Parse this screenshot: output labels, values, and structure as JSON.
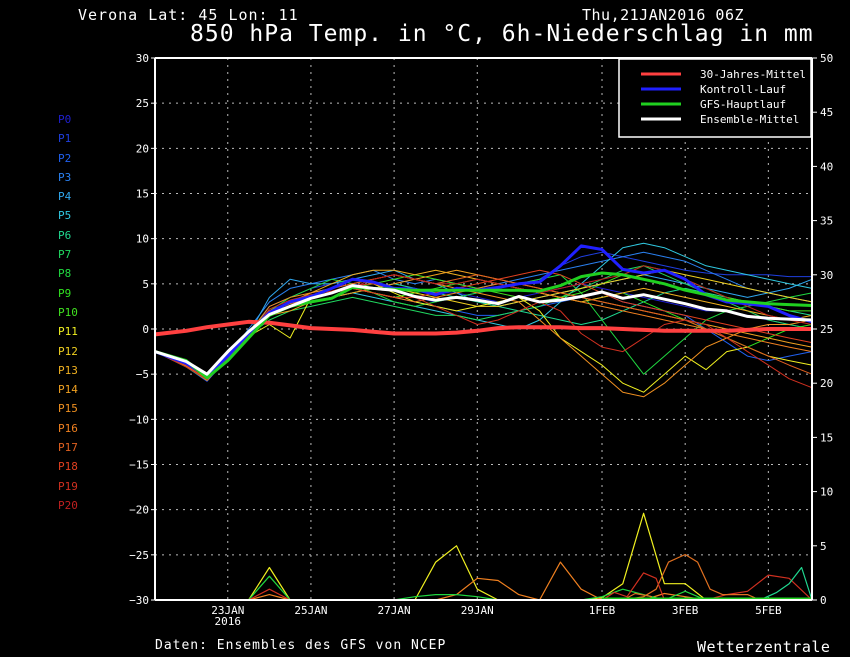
{
  "header": {
    "location": "Verona   Lat: 45 Lon: 11",
    "date": "Thu,21JAN2016 06Z",
    "title": "850 hPa Temp. in °C, 6h-Niederschlag in mm"
  },
  "footer": {
    "source": "Daten: Ensembles des GFS von NCEP",
    "brand": "Wetterzentrale"
  },
  "members": [
    {
      "label": "P0",
      "color": "#1f1fd0"
    },
    {
      "label": "P1",
      "color": "#1f3fe0"
    },
    {
      "label": "P2",
      "color": "#2060f0"
    },
    {
      "label": "P3",
      "color": "#2a80f0"
    },
    {
      "label": "P4",
      "color": "#30a8f0"
    },
    {
      "label": "P5",
      "color": "#30c8e0"
    },
    {
      "label": "P6",
      "color": "#20d890"
    },
    {
      "label": "P7",
      "color": "#20d860"
    },
    {
      "label": "P8",
      "color": "#20d840"
    },
    {
      "label": "P9",
      "color": "#30e020"
    },
    {
      "label": "P10",
      "color": "#40e020"
    },
    {
      "label": "P11",
      "color": "#f0f020"
    },
    {
      "label": "P12",
      "color": "#f0d020"
    },
    {
      "label": "P13",
      "color": "#f0b020"
    },
    {
      "label": "P14",
      "color": "#f0a020"
    },
    {
      "label": "P15",
      "color": "#f09020"
    },
    {
      "label": "P16",
      "color": "#f08020"
    },
    {
      "label": "P17",
      "color": "#e06020"
    },
    {
      "label": "P18",
      "color": "#e04020"
    },
    {
      "label": "P19",
      "color": "#d03020"
    },
    {
      "label": "P20",
      "color": "#c02020"
    }
  ],
  "chart_data": {
    "type": "line",
    "title": "850 hPa Temp. in °C, 6h-Niederschlag in mm",
    "x_unit": "day of January 2016 (32 = 1FEB)",
    "xlim": [
      21.25,
      37.05
    ],
    "ylim_left": [
      -30,
      30
    ],
    "ylim_right": [
      0,
      50
    ],
    "yticks_left": [
      "30",
      "25",
      "20",
      "15",
      "10",
      "5",
      "0",
      "-5",
      "-10",
      "-15",
      "-20",
      "-25",
      "-30"
    ],
    "yticks_right": [
      "50",
      "45",
      "40",
      "35",
      "30",
      "25",
      "20",
      "15",
      "10",
      "5",
      "0"
    ],
    "xticks": [
      {
        "x": 23,
        "label": "23JAN",
        "sub": "2016"
      },
      {
        "x": 25,
        "label": "25JAN",
        "sub": ""
      },
      {
        "x": 27,
        "label": "27JAN",
        "sub": ""
      },
      {
        "x": 29,
        "label": "29JAN",
        "sub": ""
      },
      {
        "x": 32,
        "label": "1FEB",
        "sub": ""
      },
      {
        "x": 34,
        "label": "3FEB",
        "sub": ""
      },
      {
        "x": 36,
        "label": "5FEB",
        "sub": ""
      }
    ],
    "grid": true,
    "legend_position": "top-right",
    "legend": [
      {
        "name": "30-Jahres-Mittel",
        "color": "#ff4040"
      },
      {
        "name": "Kontroll-Lauf",
        "color": "#2020ff"
      },
      {
        "name": "GFS-Hauptlauf",
        "color": "#20d020"
      },
      {
        "name": "Ensemble-Mittel",
        "color": "#ffffff"
      }
    ],
    "x": [
      21.25,
      22,
      22.5,
      23,
      23.5,
      24,
      24.5,
      25,
      25.5,
      26,
      26.5,
      27,
      27.5,
      28,
      28.5,
      29,
      29.5,
      30,
      30.5,
      31,
      31.5,
      32,
      32.5,
      33,
      33.5,
      34,
      34.5,
      35,
      35.5,
      36,
      36.5,
      37.05
    ],
    "main_series": [
      {
        "name": "30-Jahres-Mittel",
        "color": "#ff4040",
        "width": 4,
        "values": [
          -0.6,
          -0.2,
          0.2,
          0.5,
          0.8,
          0.7,
          0.4,
          0.1,
          0,
          -0.1,
          -0.3,
          -0.5,
          -0.5,
          -0.5,
          -0.4,
          -0.2,
          0.1,
          0.2,
          0.2,
          0.2,
          0.1,
          0.1,
          0,
          -0.1,
          -0.2,
          -0.2,
          -0.2,
          -0.2,
          -0.1,
          0,
          0,
          0
        ]
      },
      {
        "name": "Kontroll-Lauf",
        "color": "#2020ff",
        "width": 3,
        "values": [
          -2.5,
          -3.8,
          -5.2,
          -3,
          -0.5,
          1.8,
          3,
          3.6,
          4.5,
          5.5,
          5.2,
          4.5,
          4.4,
          3.8,
          4.5,
          4.3,
          4.6,
          5,
          5.2,
          7,
          9.2,
          8.8,
          6.6,
          6.2,
          6.5,
          5.5,
          3.8,
          3,
          2.8,
          2.5,
          1.5,
          0.8
        ]
      },
      {
        "name": "GFS-Hauptlauf",
        "color": "#20d020",
        "width": 3,
        "values": [
          -2.5,
          -3.5,
          -5.4,
          -3.5,
          -1,
          1.5,
          2.5,
          3,
          3.4,
          4.6,
          4.5,
          4.4,
          4.3,
          4.3,
          4.3,
          4.3,
          4.3,
          4.3,
          4.2,
          4.8,
          5.8,
          6.2,
          6,
          5.5,
          5,
          4.3,
          3.8,
          3.2,
          3,
          2.8,
          2.7,
          2.6
        ]
      },
      {
        "name": "Ensemble-Mittel",
        "color": "#ffffff",
        "width": 3,
        "values": [
          -2.5,
          -3.6,
          -5,
          -2.5,
          -0.3,
          1.6,
          2.5,
          3.4,
          4,
          4.8,
          4.5,
          4.3,
          3.6,
          3.2,
          3.5,
          3.2,
          2.8,
          3.6,
          3,
          3.2,
          3.6,
          4.1,
          3.4,
          3.8,
          3.3,
          2.8,
          2.2,
          2,
          1.4,
          1.2,
          1.1,
          1
        ]
      }
    ],
    "member_temp": [
      [
        -2.5,
        -4,
        -5.5,
        -3,
        -0.5,
        2,
        3,
        4,
        4.5,
        5,
        4.5,
        5,
        4.5,
        4,
        4,
        3.5,
        3,
        3.5,
        4,
        4.5,
        5,
        4.5,
        4,
        3.5,
        3,
        2.5,
        2,
        2,
        1.5,
        1,
        0.5,
        0
      ],
      [
        -2.5,
        -4.2,
        -5.8,
        -3.2,
        -0.8,
        2.5,
        3.5,
        4.5,
        5,
        5.5,
        5,
        4.5,
        3.5,
        3,
        3.5,
        4,
        4.5,
        5,
        5.5,
        7,
        8,
        8.5,
        8,
        7.5,
        7,
        6.5,
        6.2,
        6,
        6,
        6,
        5.8,
        5.8
      ],
      [
        -2.5,
        -3.8,
        -5.2,
        -2.8,
        -0.5,
        2,
        3,
        3.5,
        4,
        4.5,
        4,
        3.5,
        3,
        2.5,
        2,
        1.5,
        1.5,
        2,
        2.5,
        3,
        3.5,
        4,
        3,
        2.5,
        2,
        1.5,
        0,
        -1.5,
        -3,
        -3.5,
        -3,
        -2.5
      ],
      [
        -2.5,
        -4,
        -5.5,
        -3,
        0,
        3,
        4.5,
        5,
        5.5,
        6,
        6.5,
        5.5,
        5,
        5.5,
        5,
        4.5,
        5,
        5.5,
        6,
        6.5,
        7,
        7.5,
        8,
        8.5,
        8,
        7.5,
        6.5,
        5.5,
        4.5,
        4,
        3.5,
        3
      ],
      [
        -2.5,
        -4.1,
        -5.6,
        -3.2,
        -0.6,
        3.5,
        5.5,
        5,
        5,
        5.5,
        6,
        6.5,
        5.5,
        5,
        4,
        3,
        2.5,
        3,
        3.5,
        4,
        4.5,
        5,
        5.5,
        6,
        5.5,
        5,
        4.5,
        4,
        3.5,
        4,
        4.5,
        5.5
      ],
      [
        -2.5,
        -4,
        -5.3,
        -3,
        -0.5,
        2,
        2.5,
        3,
        3.5,
        4,
        3.5,
        3,
        2.5,
        2,
        1.5,
        1,
        0.5,
        0,
        1,
        3,
        5,
        7,
        9,
        9.5,
        9,
        8,
        7,
        6.5,
        6,
        5.5,
        5,
        4.5
      ],
      [
        -2.5,
        -3.9,
        -5.4,
        -2.9,
        -0.4,
        1.5,
        2.5,
        3,
        3.5,
        4,
        4.5,
        5,
        4.5,
        4,
        3.5,
        3,
        2.5,
        2,
        1.5,
        1,
        0.5,
        1,
        2,
        3,
        4,
        4.5,
        4,
        3.5,
        3,
        2.5,
        2,
        1.5
      ],
      [
        -2.5,
        -4.2,
        -5.7,
        -3.1,
        -0.7,
        1,
        2,
        2.5,
        3,
        3.5,
        3,
        2.5,
        2,
        1.5,
        1.5,
        1,
        1.5,
        2,
        2.5,
        3.5,
        4.5,
        5.5,
        6.5,
        7,
        6,
        5,
        4,
        3,
        2,
        1,
        0.5,
        0
      ],
      [
        -2.5,
        -3.7,
        -5.1,
        -2.7,
        -0.2,
        2,
        3.5,
        4.5,
        5.5,
        5,
        4,
        3,
        2.5,
        3,
        3.5,
        4,
        4.5,
        5,
        5.5,
        6,
        4,
        1,
        -2,
        -5,
        -3,
        -1,
        1,
        2,
        2.5,
        3,
        3.5,
        4
      ],
      [
        -2.5,
        -3.8,
        -5.3,
        -2.9,
        -0.5,
        1.5,
        2.5,
        3.5,
        4,
        4.5,
        4,
        3.5,
        4,
        4.5,
        5,
        5.5,
        5,
        4.5,
        4,
        3.5,
        3,
        3.5,
        4,
        3,
        2,
        1,
        0,
        -1,
        -2,
        -1,
        0,
        0.5
      ],
      [
        -2.5,
        -4,
        -5.5,
        -3.2,
        -0.6,
        1.8,
        3,
        3.5,
        4,
        4.5,
        5,
        5.5,
        6,
        5.5,
        5,
        4.5,
        4,
        3.5,
        3,
        3.5,
        4,
        5,
        6,
        7,
        6.5,
        5.5,
        4.5,
        3.5,
        3,
        2.5,
        2,
        2
      ],
      [
        -2.5,
        -4.1,
        -5.4,
        -3,
        -0.8,
        0.5,
        -1,
        3.5,
        4.5,
        5.5,
        5,
        4,
        3,
        2.5,
        2,
        2.5,
        3,
        3.5,
        2,
        -1,
        -2.5,
        -4,
        -6,
        -7,
        -5,
        -3,
        -4.5,
        -2.5,
        -2,
        -3,
        -3.5,
        -4
      ],
      [
        -2.5,
        -3.9,
        -5.2,
        -2.8,
        -0.3,
        1.5,
        2.5,
        3.5,
        4.5,
        5.5,
        5,
        4.5,
        4,
        3.5,
        3,
        2.5,
        2.5,
        3,
        3.5,
        4,
        4.5,
        5,
        5.5,
        6,
        6.5,
        6,
        5.5,
        5,
        4.5,
        4,
        3.5,
        3
      ],
      [
        -2.5,
        -4,
        -5.6,
        -3.3,
        -0.7,
        2,
        3,
        4,
        5,
        6,
        6.5,
        6.5,
        6,
        6.5,
        6,
        5.5,
        5,
        4.5,
        4,
        3.5,
        3,
        3.5,
        4,
        4.5,
        4,
        3.5,
        3,
        2.5,
        2,
        1.5,
        1,
        1.5
      ],
      [
        -2.5,
        -3.8,
        -5.1,
        -2.8,
        -0.4,
        1.5,
        2,
        3,
        3.5,
        4,
        4.5,
        5,
        5.5,
        6,
        6.5,
        6,
        5.5,
        5,
        4.5,
        4,
        3.5,
        3,
        2.5,
        2,
        1.5,
        1,
        0.5,
        0,
        -0.5,
        -1,
        -1.5,
        -2
      ],
      [
        -2.5,
        -4.1,
        -5.7,
        -3.2,
        -0.5,
        2.5,
        3.5,
        4,
        4.5,
        5,
        5.5,
        6,
        5.5,
        5,
        4.5,
        4,
        3.5,
        3,
        1,
        -1,
        -3,
        -5,
        -7,
        -7.5,
        -6,
        -4,
        -2,
        -1,
        0,
        0.5,
        0.5,
        1
      ],
      [
        -2.5,
        -3.9,
        -5.4,
        -3,
        -0.6,
        1.8,
        2.8,
        3.4,
        4,
        4.5,
        4,
        3.5,
        3,
        3.5,
        4,
        4.5,
        5,
        4.5,
        4,
        3.5,
        3,
        2.5,
        2,
        1.5,
        1,
        0.5,
        0,
        -0.5,
        -1,
        -1.5,
        -2,
        -2.5
      ],
      [
        -2.5,
        -4,
        -5.5,
        -3.1,
        -0.5,
        1.5,
        2.5,
        3.5,
        4.5,
        5,
        5.5,
        6,
        5.5,
        5,
        5.5,
        6,
        5.5,
        5,
        4.5,
        4,
        3.5,
        3,
        2.5,
        2,
        1.5,
        1,
        0,
        -1,
        -2,
        -3,
        -4,
        -5
      ],
      [
        -2.5,
        -3.8,
        -5.3,
        -2.9,
        -0.4,
        2,
        3,
        3.5,
        4,
        4.5,
        4,
        3.5,
        3.5,
        4,
        4.5,
        5,
        5.5,
        6,
        6.5,
        6,
        5,
        4,
        3,
        2.5,
        2,
        1.5,
        1,
        0.5,
        0,
        -0.5,
        -1,
        -1.5
      ],
      [
        -2.5,
        -4.2,
        -5.6,
        -3.2,
        -0.7,
        2.2,
        3.2,
        3.8,
        4.2,
        4.8,
        5,
        4.5,
        3.5,
        2.5,
        1.5,
        0.5,
        1,
        2,
        3,
        2,
        -0.5,
        -2,
        -2.5,
        -1,
        0.5,
        1,
        0.5,
        -1,
        -2.5,
        -4,
        -5.5,
        -6.5
      ],
      [
        -2.5,
        -4,
        -5.4,
        -3,
        -0.5,
        1.6,
        2.6,
        3.4,
        4,
        4.6,
        5.5,
        6,
        5.5,
        5,
        5,
        5.5,
        5,
        4.5,
        4,
        4.5,
        5,
        5.5,
        6,
        7,
        6.5,
        5.5,
        4.5,
        3.5,
        2.5,
        1.5,
        1,
        0.5
      ]
    ],
    "precip_mm": [
      {
        "member": 11,
        "values": [
          0,
          0,
          0,
          0,
          0,
          3,
          0,
          0,
          0,
          0,
          0,
          0,
          0,
          3.5,
          5,
          1,
          0,
          0,
          0,
          0,
          0,
          0.2,
          1.5,
          8,
          1.5,
          1.5,
          0,
          0,
          0,
          0,
          0,
          0
        ]
      },
      {
        "member": 16,
        "values": [
          0,
          0,
          0,
          0,
          0,
          0.5,
          0,
          0,
          0,
          0,
          0,
          0,
          0,
          0,
          0.5,
          2,
          1.8,
          0.5,
          0,
          3.5,
          1,
          0,
          0,
          0,
          0.6,
          0.3,
          0,
          0,
          0,
          0,
          0,
          0
        ]
      },
      {
        "member": 8,
        "values": [
          0,
          0,
          0,
          0,
          0,
          2.2,
          0,
          0,
          0,
          0,
          0,
          0,
          0.3,
          0.5,
          0.5,
          0.3,
          0,
          0,
          0,
          0,
          0,
          0.3,
          1,
          0.5,
          0,
          0.8,
          0,
          0,
          0,
          0,
          0,
          0
        ]
      },
      {
        "member": 19,
        "values": [
          0,
          0,
          0,
          0,
          0,
          1,
          0,
          0,
          0,
          0,
          0,
          0,
          0,
          0,
          0,
          0,
          0,
          0,
          0,
          0,
          0,
          0,
          0,
          0,
          0,
          0,
          0,
          0.5,
          0.8,
          2.3,
          2,
          0
        ]
      },
      {
        "member": 15,
        "values": [
          0,
          0,
          0,
          0,
          0,
          0,
          0,
          0,
          0,
          0,
          0,
          0,
          0,
          0,
          0,
          0,
          0,
          0,
          0,
          0,
          0,
          0,
          0,
          0,
          0,
          0,
          0,
          0,
          0,
          0,
          0,
          0
        ]
      },
      {
        "member": 14,
        "values": [
          0,
          0,
          0,
          0,
          0,
          0,
          0,
          0,
          0,
          0,
          0,
          0,
          0,
          0,
          0,
          0,
          0,
          0,
          0,
          0,
          0,
          0,
          0,
          0,
          0,
          0,
          0,
          0,
          0,
          0,
          0,
          0
        ]
      }
    ],
    "precip_extra": [
      {
        "color": "#e07020",
        "x": [
          32.5,
          33,
          33.3,
          33.6,
          34,
          34.3,
          34.6,
          34.9,
          35.2,
          35.5,
          35.8
        ],
        "values": [
          0,
          0.3,
          1,
          3.5,
          4.2,
          3.5,
          1,
          0.5,
          0.5,
          0.5,
          0
        ]
      },
      {
        "color": "#e07020",
        "x": [
          32.5,
          32.8,
          33.2
        ],
        "values": [
          0,
          0.6,
          0.3
        ]
      },
      {
        "color": "#d03020",
        "x": [
          32,
          32.3,
          32.6,
          33,
          33.3,
          33.5
        ],
        "values": [
          0,
          0.7,
          0.3,
          2.5,
          2,
          0
        ]
      },
      {
        "color": "#20d890",
        "x": [
          35.8,
          36.2,
          36.5,
          36.8,
          37.05
        ],
        "values": [
          0,
          0.7,
          1.5,
          3,
          0
        ]
      }
    ]
  }
}
